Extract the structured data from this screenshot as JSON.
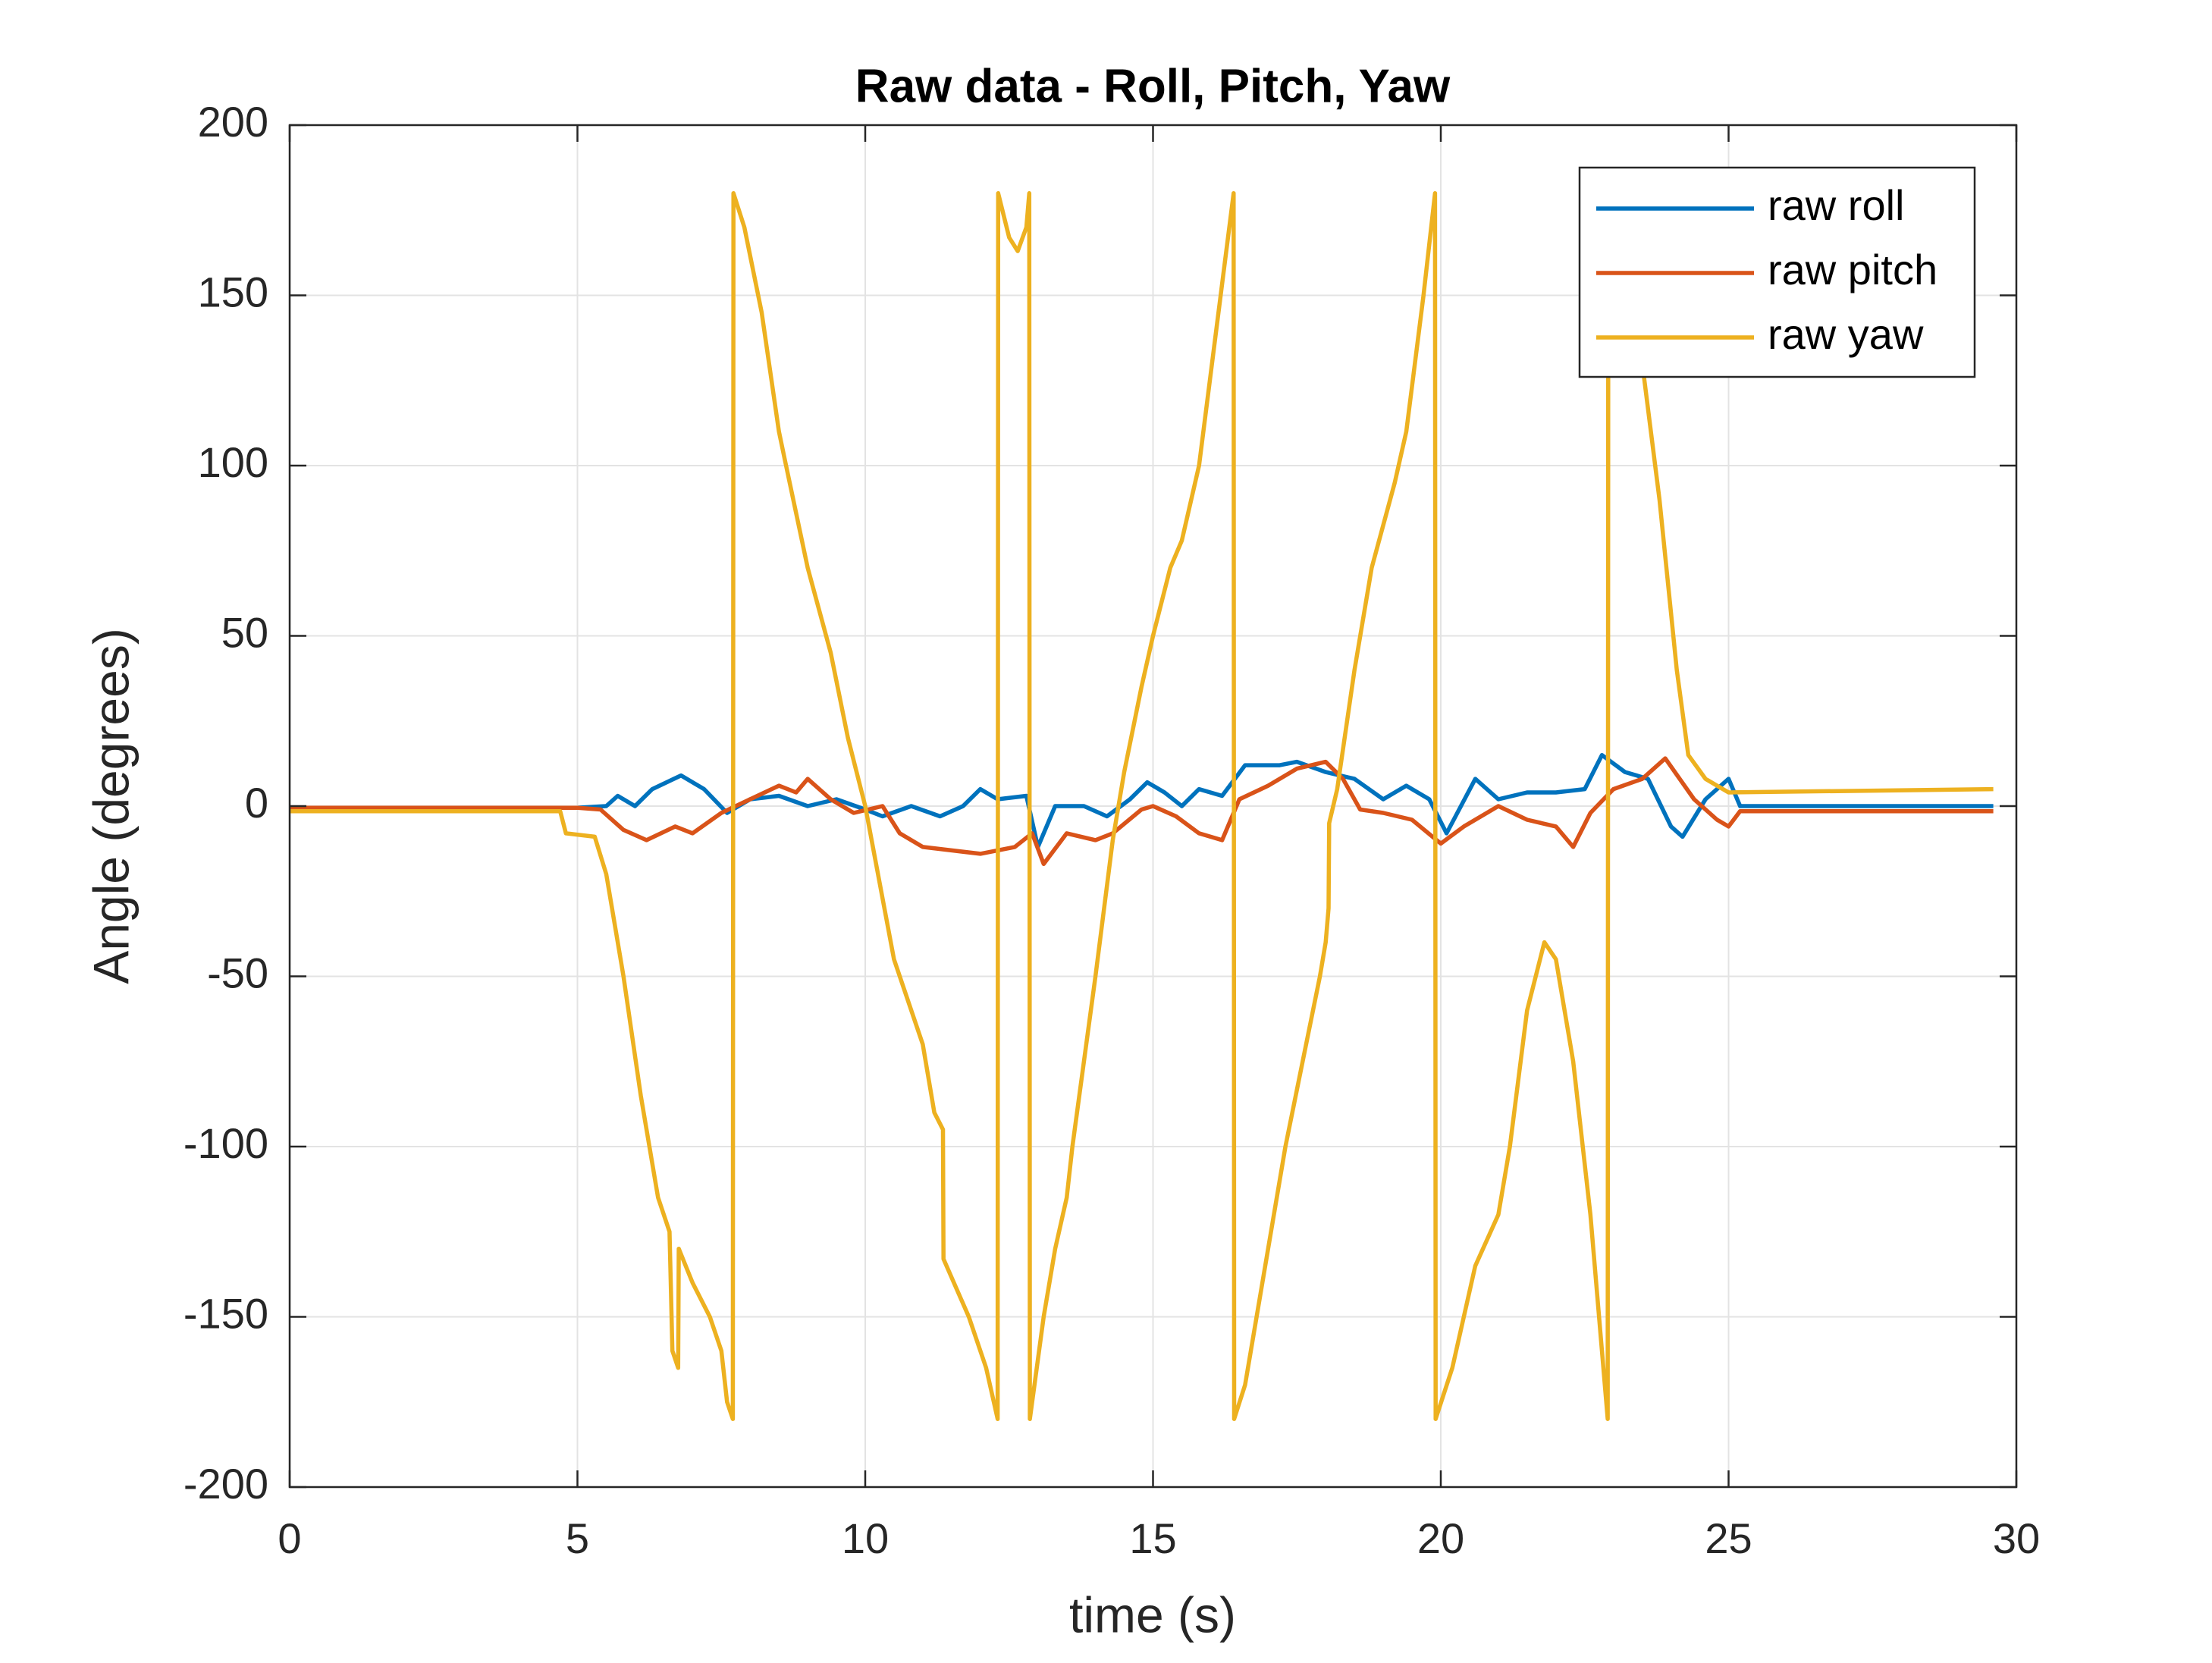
{
  "chart_data": {
    "type": "line",
    "title": "Raw data - Roll, Pitch, Yaw",
    "x_label": "time (s)",
    "y_label": "Angle (degrees)",
    "xlim": [
      0,
      30
    ],
    "ylim": [
      -200,
      200
    ],
    "xticks": [
      0,
      5,
      10,
      15,
      20,
      25,
      30
    ],
    "yticks": [
      -200,
      -150,
      -100,
      -50,
      0,
      50,
      100,
      150,
      200
    ],
    "grid": true,
    "legend": "northeast",
    "series": [
      {
        "name": "raw roll",
        "color": "#0072BD",
        "x": [
          0,
          5,
          5.5,
          5.7,
          6.0,
          6.3,
          6.8,
          7.2,
          7.6,
          8.0,
          8.5,
          9.0,
          9.5,
          10.0,
          10.3,
          10.8,
          11.3,
          11.7,
          12.0,
          12.3,
          12.8,
          13.0,
          13.3,
          13.8,
          14.2,
          14.6,
          14.9,
          15.2,
          15.5,
          15.8,
          16.2,
          16.6,
          17.2,
          17.5,
          18.0,
          18.5,
          19.0,
          19.4,
          19.8,
          20.1,
          20.6,
          21.0,
          21.5,
          22.0,
          22.5,
          22.8,
          23.2,
          23.6,
          24.0,
          24.2,
          24.6,
          25.0,
          25.2,
          29.6
        ],
        "values": [
          -0.5,
          -0.5,
          0,
          3,
          0,
          5,
          9,
          5,
          -2,
          2,
          3,
          0,
          2,
          -1,
          -3,
          0,
          -3,
          0,
          5,
          2,
          3,
          -12,
          0,
          0,
          -3,
          2,
          7,
          4,
          0,
          5,
          3,
          12,
          12,
          13,
          10,
          8,
          2,
          6,
          2,
          -8,
          8,
          2,
          4,
          4,
          5,
          15,
          10,
          8,
          -6,
          -9,
          2,
          8,
          0,
          0
        ]
      },
      {
        "name": "raw pitch",
        "color": "#D95319",
        "x": [
          0,
          5,
          5.4,
          5.8,
          6.2,
          6.7,
          7.0,
          7.5,
          8.0,
          8.5,
          8.8,
          9.0,
          9.4,
          9.8,
          10.3,
          10.6,
          11.0,
          11.5,
          12.0,
          12.6,
          12.9,
          13.1,
          13.5,
          14.0,
          14.3,
          14.8,
          15.0,
          15.4,
          15.8,
          16.2,
          16.5,
          17.0,
          17.5,
          18.0,
          18.3,
          18.6,
          19.0,
          19.5,
          20.0,
          20.4,
          20.8,
          21.0,
          21.5,
          22.0,
          22.3,
          22.6,
          23.0,
          23.5,
          23.9,
          24.4,
          24.8,
          25.0,
          25.2,
          29.6
        ],
        "values": [
          -0.5,
          -0.5,
          -1,
          -7,
          -10,
          -6,
          -8,
          -2,
          2,
          6,
          4,
          8,
          2,
          -2,
          0,
          -8,
          -12,
          -13,
          -14,
          -12,
          -8,
          -17,
          -8,
          -10,
          -8,
          -1,
          0,
          -3,
          -8,
          -10,
          2,
          6,
          11,
          13,
          8,
          -1,
          -2,
          -4,
          -11,
          -6,
          -2,
          0,
          -4,
          -6,
          -12,
          -2,
          5,
          8,
          14,
          2,
          -4,
          -6,
          -1.5,
          -1.5
        ]
      },
      {
        "name": "raw yaw",
        "color": "#EDB120",
        "x": [
          0,
          4.7,
          4.8,
          5.3,
          5.5,
          5.8,
          6.1,
          6.4,
          6.6,
          6.65,
          6.75,
          6.76,
          7.0,
          7.3,
          7.5,
          7.6,
          7.7,
          7.71,
          7.9,
          8.2,
          8.5,
          8.6,
          9.0,
          9.4,
          9.7,
          10.0,
          10.5,
          11.0,
          11.2,
          11.35,
          11.36,
          11.8,
          12.1,
          12.3,
          12.31,
          12.5,
          12.65,
          12.8,
          12.85,
          12.86,
          13.1,
          13.3,
          13.5,
          13.6,
          14.0,
          14.3,
          14.5,
          14.8,
          15.0,
          15.3,
          15.5,
          15.8,
          16.1,
          16.4,
          16.41,
          16.6,
          16.9,
          17.3,
          17.6,
          17.9,
          18.0,
          18.05,
          18.06,
          18.2,
          18.5,
          18.8,
          19.2,
          19.4,
          19.7,
          19.9,
          19.91,
          20.2,
          20.6,
          21.0,
          21.2,
          21.5,
          21.8,
          22.0,
          22.3,
          22.6,
          22.8,
          22.9,
          22.91,
          23.3,
          23.5,
          23.8,
          24.1,
          24.3,
          24.6,
          25.0,
          29.6
        ],
        "values": [
          -1.5,
          -1.5,
          -8,
          -9,
          -20,
          -50,
          -85,
          -115,
          -125,
          -160,
          -165,
          -130,
          -140,
          -150,
          -160,
          -175,
          -180,
          180,
          170,
          145,
          110,
          102,
          70,
          45,
          20,
          0,
          -45,
          -70,
          -90,
          -95,
          -133,
          -150,
          -165,
          -180,
          180,
          167,
          163,
          170,
          180,
          -180,
          -150,
          -130,
          -115,
          -100,
          -50,
          -10,
          10,
          35,
          50,
          70,
          78,
          100,
          140,
          180,
          -180,
          -170,
          -140,
          -100,
          -75,
          -50,
          -40,
          -30,
          -5,
          5,
          40,
          70,
          95,
          110,
          150,
          180,
          -180,
          -165,
          -135,
          -120,
          -100,
          -60,
          -40,
          -45,
          -75,
          -120,
          -160,
          -180,
          180,
          180,
          130,
          90,
          40,
          15,
          8,
          4,
          5
        ]
      }
    ]
  }
}
